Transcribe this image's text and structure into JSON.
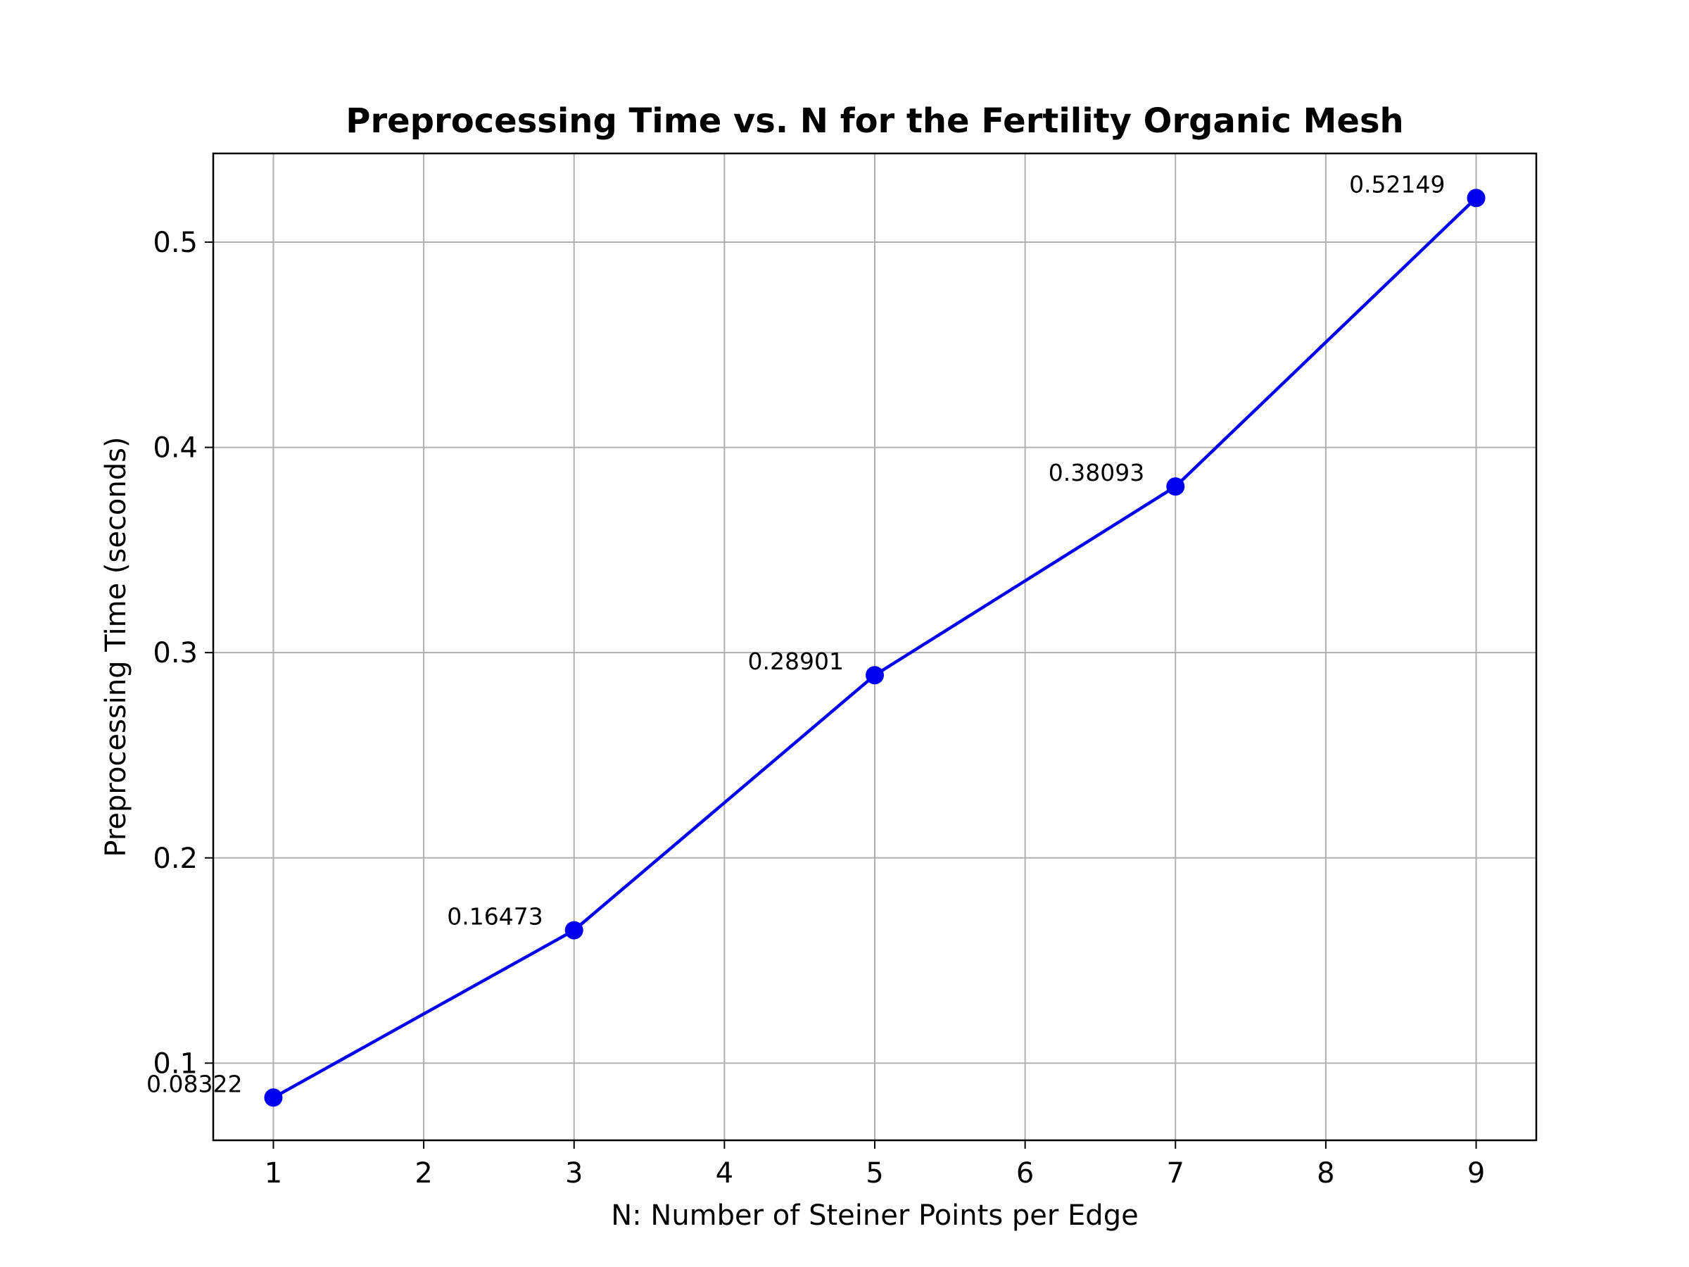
{
  "chart_data": {
    "type": "line",
    "title": "Preprocessing Time vs. N for the Fertility Organic Mesh",
    "xlabel": "N: Number of Steiner Points per Edge",
    "ylabel": "Preprocessing Time (seconds)",
    "x": [
      1,
      3,
      5,
      7,
      9
    ],
    "series": [
      {
        "values": [
          0.08322,
          0.16473,
          0.28901,
          0.38093,
          0.52149
        ],
        "labels": [
          "0.08322",
          "0.16473",
          "0.28901",
          "0.38093",
          "0.52149"
        ],
        "color": "#0000ee",
        "marker": "circle"
      }
    ],
    "xticks": [
      "1",
      "2",
      "3",
      "4",
      "5",
      "6",
      "7",
      "8",
      "9"
    ],
    "yticks": [
      "0.1",
      "0.2",
      "0.3",
      "0.4",
      "0.5"
    ],
    "xlim": [
      0.6,
      9.4
    ],
    "ylim": [
      0.0624,
      0.5432
    ],
    "grid": true,
    "legend": "none"
  }
}
